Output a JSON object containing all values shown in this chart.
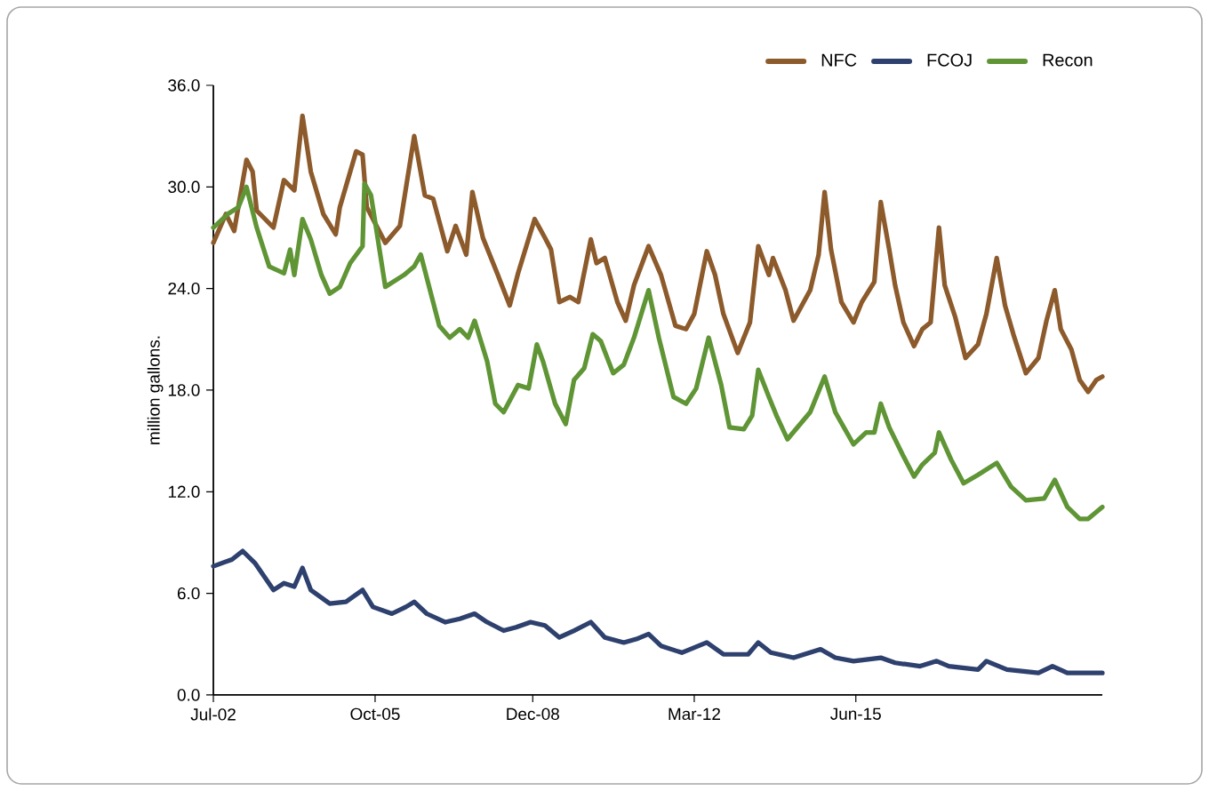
{
  "chart_data": {
    "type": "line",
    "ylabel": "million gallons.",
    "xlim": [
      "2002-07-01",
      "2020-05-15"
    ],
    "xticks": [
      {
        "value": "2002-07-01",
        "label": "Jul-02"
      },
      {
        "value": "2005-10-01",
        "label": "Oct-05"
      },
      {
        "value": "2008-12-01",
        "label": "Dec-08"
      },
      {
        "value": "2012-03-01",
        "label": "Mar-12"
      },
      {
        "value": "2015-06-01",
        "label": "Jun-15"
      }
    ],
    "ylim": [
      0,
      36
    ],
    "yticks": [
      {
        "value": 0,
        "label": "0.0"
      },
      {
        "value": 6,
        "label": "6.0"
      },
      {
        "value": 12,
        "label": "12.0"
      },
      {
        "value": 18,
        "label": "18.0"
      },
      {
        "value": 24,
        "label": "24.0"
      },
      {
        "value": 30,
        "label": "30.0"
      },
      {
        "value": 36,
        "label": "36.0"
      }
    ],
    "legend": "top right",
    "marker": "none",
    "line_style": "solid",
    "series": [
      {
        "name": "NFC",
        "color": "#8c5a2b",
        "x": [
          "2002-07-01",
          "2002-10-01",
          "2002-12-01",
          "2003-03-01",
          "2003-04-15",
          "2003-05-15",
          "2003-09-15",
          "2003-12-01",
          "2004-02-15",
          "2004-04-15",
          "2004-06-15",
          "2004-09-15",
          "2004-12-15",
          "2005-01-15",
          "2005-05-15",
          "2005-07-01",
          "2005-08-01",
          "2005-12-15",
          "2006-04-01",
          "2006-07-15",
          "2006-10-01",
          "2006-12-01",
          "2007-03-15",
          "2007-05-15",
          "2007-08-01",
          "2007-09-15",
          "2007-12-01",
          "2008-03-15",
          "2008-06-15",
          "2008-08-15",
          "2008-12-15",
          "2009-03-01",
          "2009-04-15",
          "2009-06-15",
          "2009-09-01",
          "2009-11-01",
          "2010-02-01",
          "2010-03-15",
          "2010-05-15",
          "2010-08-15",
          "2010-10-15",
          "2010-12-15",
          "2011-04-01",
          "2011-07-01",
          "2011-10-15",
          "2012-01-01",
          "2012-03-01",
          "2012-06-01",
          "2012-08-01",
          "2012-10-01",
          "2013-01-15",
          "2013-04-15",
          "2013-06-15",
          "2013-09-01",
          "2013-10-01",
          "2014-01-01",
          "2014-03-01",
          "2014-07-01",
          "2014-09-01",
          "2014-10-15",
          "2014-12-01",
          "2015-02-15",
          "2015-05-15",
          "2015-07-15",
          "2015-10-15",
          "2015-12-01",
          "2016-02-01",
          "2016-03-15",
          "2016-05-15",
          "2016-08-01",
          "2016-10-01",
          "2016-12-01",
          "2017-02-01",
          "2017-03-15",
          "2017-06-01",
          "2017-08-15",
          "2017-11-15",
          "2018-01-15",
          "2018-04-01",
          "2018-06-01",
          "2018-08-01",
          "2018-11-01",
          "2019-02-01",
          "2019-04-01",
          "2019-06-01",
          "2019-07-15",
          "2019-10-01",
          "2019-12-01",
          "2020-02-01",
          "2020-04-01",
          "2020-05-15"
        ],
        "values": [
          26.7,
          28.4,
          27.4,
          31.6,
          30.9,
          28.6,
          27.6,
          30.4,
          29.8,
          34.2,
          30.9,
          28.4,
          27.2,
          28.8,
          32.1,
          31.9,
          28.8,
          26.7,
          27.7,
          33.0,
          29.5,
          29.3,
          26.2,
          27.7,
          26.0,
          29.7,
          27.0,
          24.9,
          23.0,
          24.9,
          28.1,
          27.0,
          26.3,
          23.2,
          23.5,
          23.2,
          26.9,
          25.5,
          25.8,
          23.2,
          22.1,
          24.2,
          26.5,
          24.8,
          21.8,
          21.6,
          22.5,
          26.2,
          24.8,
          22.5,
          20.2,
          22.0,
          26.5,
          24.8,
          25.8,
          23.9,
          22.1,
          23.9,
          26.0,
          29.7,
          26.3,
          23.2,
          22.0,
          23.2,
          24.4,
          29.1,
          26.3,
          24.2,
          22.0,
          20.6,
          21.6,
          22.0,
          27.6,
          24.2,
          22.3,
          19.9,
          20.7,
          22.5,
          25.8,
          23.0,
          21.3,
          19.0,
          19.9,
          22.1,
          23.9,
          21.6,
          20.4,
          18.6,
          17.9,
          18.6,
          18.8
        ]
      },
      {
        "name": "FCOJ",
        "color": "#2e406e",
        "x": [
          "2002-07-01",
          "2002-11-15",
          "2003-02-01",
          "2003-05-01",
          "2003-09-15",
          "2003-12-01",
          "2004-02-15",
          "2004-04-15",
          "2004-06-15",
          "2004-11-01",
          "2005-03-01",
          "2005-07-01",
          "2005-09-15",
          "2006-02-01",
          "2006-05-15",
          "2006-07-15",
          "2006-10-15",
          "2007-03-01",
          "2007-06-15",
          "2007-10-01",
          "2008-01-01",
          "2008-05-01",
          "2008-08-01",
          "2008-11-15",
          "2009-03-01",
          "2009-06-15",
          "2009-10-01",
          "2010-02-01",
          "2010-05-15",
          "2010-10-01",
          "2011-01-01",
          "2011-04-01",
          "2011-07-01",
          "2011-12-01",
          "2012-06-01",
          "2012-10-01",
          "2013-04-01",
          "2013-06-15",
          "2013-09-15",
          "2014-03-01",
          "2014-09-15",
          "2015-01-01",
          "2015-05-15",
          "2015-12-01",
          "2016-03-15",
          "2016-09-15",
          "2017-01-15",
          "2017-04-15",
          "2017-11-15",
          "2018-01-15",
          "2018-06-15",
          "2019-02-01",
          "2019-05-15",
          "2019-09-01",
          "2020-05-15"
        ],
        "values": [
          7.6,
          8.0,
          8.5,
          7.8,
          6.2,
          6.6,
          6.4,
          7.5,
          6.2,
          5.4,
          5.5,
          6.2,
          5.2,
          4.8,
          5.2,
          5.5,
          4.8,
          4.3,
          4.5,
          4.8,
          4.3,
          3.8,
          4.0,
          4.3,
          4.1,
          3.4,
          3.8,
          4.3,
          3.4,
          3.1,
          3.3,
          3.6,
          2.9,
          2.5,
          3.1,
          2.4,
          2.4,
          3.1,
          2.5,
          2.2,
          2.7,
          2.2,
          2.0,
          2.2,
          1.9,
          1.7,
          2.0,
          1.7,
          1.5,
          2.0,
          1.5,
          1.3,
          1.7,
          1.3,
          1.3
        ]
      },
      {
        "name": "Recon",
        "color": "#5f9535",
        "x": [
          "2002-07-01",
          "2002-10-15",
          "2003-01-01",
          "2003-03-01",
          "2003-05-15",
          "2003-08-15",
          "2003-12-01",
          "2004-01-15",
          "2004-02-15",
          "2004-04-15",
          "2004-06-15",
          "2004-09-01",
          "2004-11-01",
          "2005-01-15",
          "2005-04-01",
          "2005-07-01",
          "2005-07-15",
          "2005-09-01",
          "2005-12-15",
          "2006-05-01",
          "2006-07-15",
          "2006-09-01",
          "2007-01-15",
          "2007-04-01",
          "2007-06-15",
          "2007-08-15",
          "2007-10-01",
          "2008-01-01",
          "2008-03-01",
          "2008-05-01",
          "2008-08-15",
          "2008-11-01",
          "2009-01-01",
          "2009-02-15",
          "2009-05-15",
          "2009-08-01",
          "2009-10-01",
          "2009-12-15",
          "2010-02-15",
          "2010-04-15",
          "2010-07-15",
          "2010-10-01",
          "2010-12-15",
          "2011-04-01",
          "2011-06-15",
          "2011-10-01",
          "2012-01-01",
          "2012-03-15",
          "2012-06-15",
          "2012-09-15",
          "2012-11-15",
          "2013-03-01",
          "2013-05-01",
          "2013-06-15",
          "2013-09-01",
          "2013-11-01",
          "2014-01-15",
          "2014-07-01",
          "2014-10-15",
          "2015-01-01",
          "2015-05-15",
          "2015-08-15",
          "2015-10-15",
          "2015-12-01",
          "2016-02-01",
          "2016-05-15",
          "2016-08-01",
          "2016-10-01",
          "2017-01-01",
          "2017-02-01",
          "2017-05-01",
          "2017-08-01",
          "2017-11-15",
          "2018-04-01",
          "2018-07-15",
          "2018-11-01",
          "2019-03-15",
          "2019-06-01",
          "2019-09-01",
          "2019-12-01",
          "2020-02-01",
          "2020-05-15"
        ],
        "values": [
          27.6,
          28.4,
          28.8,
          30.0,
          27.6,
          25.3,
          24.9,
          26.3,
          24.8,
          28.1,
          26.9,
          24.8,
          23.7,
          24.1,
          25.5,
          26.5,
          30.2,
          29.5,
          24.1,
          24.8,
          25.3,
          26.0,
          21.8,
          21.1,
          21.6,
          21.1,
          22.1,
          19.7,
          17.2,
          16.7,
          18.3,
          18.1,
          20.7,
          19.7,
          17.2,
          16.0,
          18.6,
          19.3,
          21.3,
          20.9,
          19.0,
          19.5,
          21.1,
          23.9,
          21.1,
          17.6,
          17.2,
          18.1,
          21.1,
          18.3,
          15.8,
          15.7,
          16.5,
          19.2,
          17.6,
          16.4,
          15.1,
          16.7,
          18.8,
          16.7,
          14.8,
          15.5,
          15.5,
          17.2,
          15.8,
          14.1,
          12.9,
          13.6,
          14.3,
          15.5,
          13.9,
          12.5,
          13.0,
          13.7,
          12.3,
          11.5,
          11.6,
          12.7,
          11.1,
          10.4,
          10.4,
          11.1
        ]
      }
    ]
  }
}
